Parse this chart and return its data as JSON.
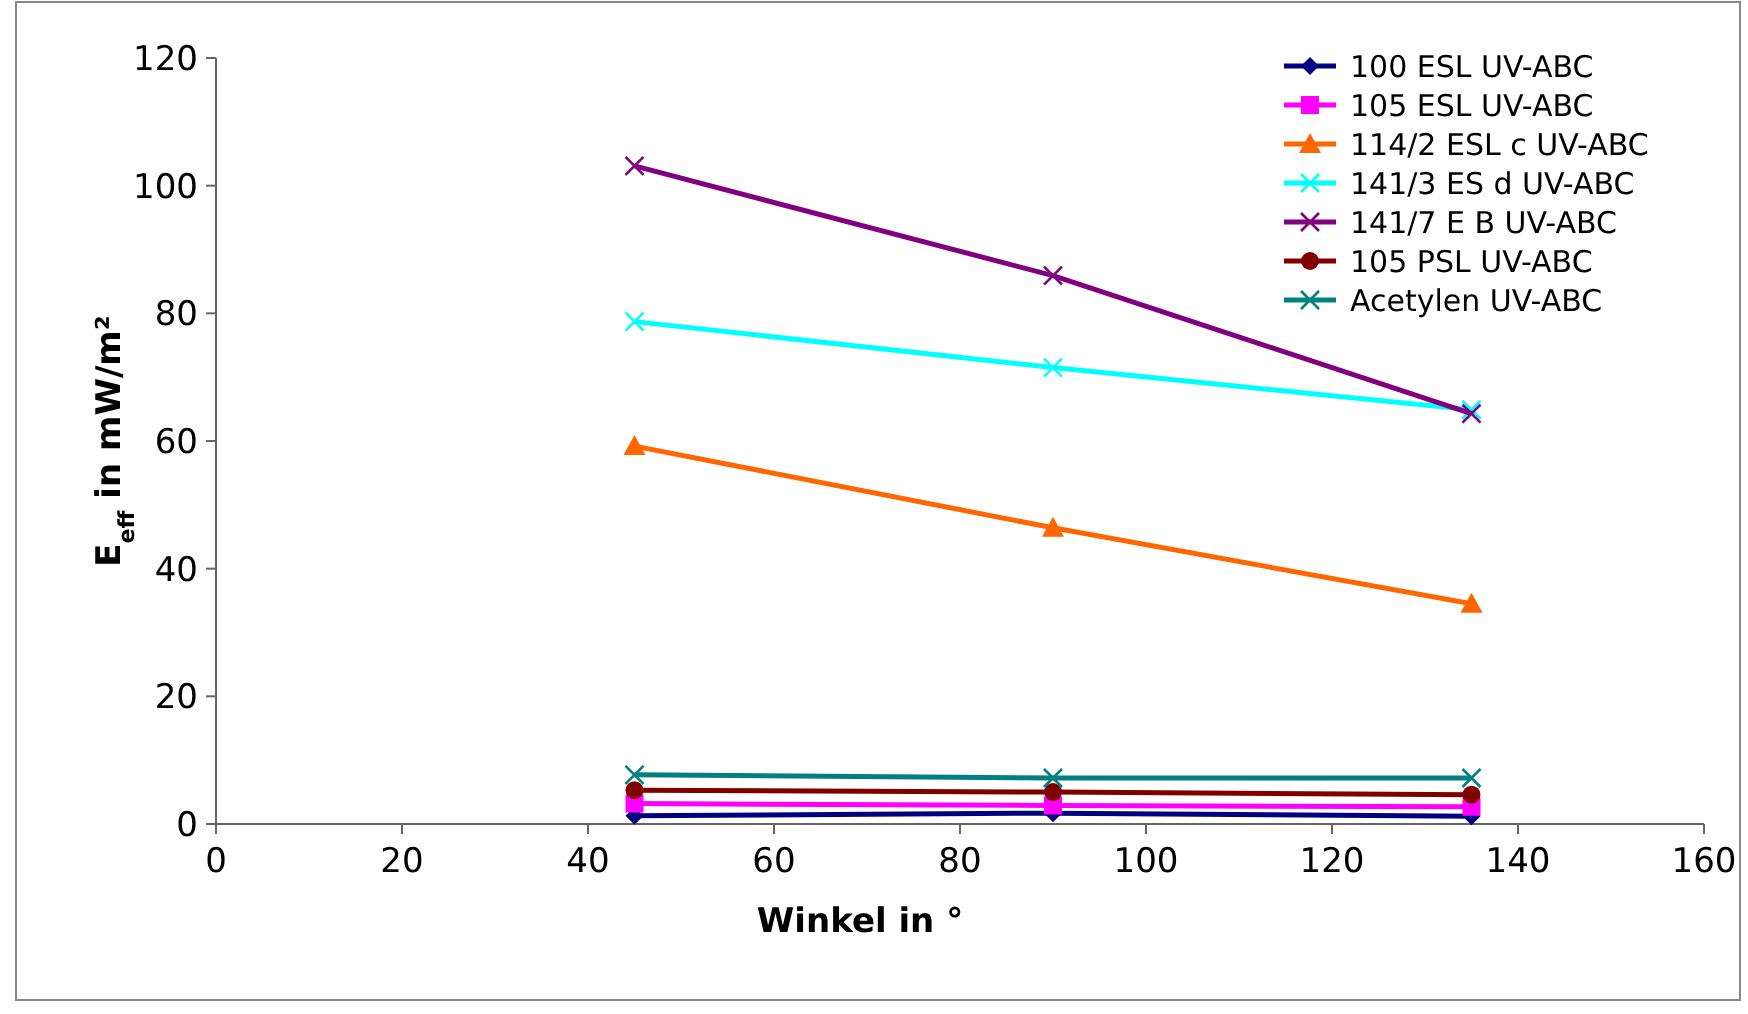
{
  "chart_data": {
    "type": "line",
    "xlabel": "Winkel in °",
    "ylabel": "E$_{eff}$ in mW/m²",
    "x": [
      45,
      90,
      135
    ],
    "xlim": [
      0,
      160
    ],
    "xticks": [
      0,
      20,
      40,
      60,
      80,
      100,
      120,
      140,
      160
    ],
    "ylim": [
      0,
      120
    ],
    "yticks": [
      0,
      20,
      40,
      60,
      80,
      100,
      120
    ],
    "grid": false,
    "legend": "top right",
    "line_style": "solid",
    "series": [
      {
        "name": "100 ESL UV-ABC",
        "color": "#000080",
        "marker": "diamond",
        "values": [
          1.3,
          1.7,
          1.2
        ]
      },
      {
        "name": "105 ESL UV-ABC",
        "color": "#ff00ff",
        "marker": "square",
        "values": [
          3.2,
          2.9,
          2.7
        ]
      },
      {
        "name": "114/2 ESL c UV-ABC",
        "color": "#ff6600",
        "marker": "triangle",
        "values": [
          59.2,
          46.4,
          34.5
        ]
      },
      {
        "name": "141/3 ES d UV-ABC",
        "color": "#00ffff",
        "marker": "cross",
        "values": [
          78.7,
          71.5,
          64.9
        ]
      },
      {
        "name": "141/7 E B UV-ABC",
        "color": "#800080",
        "marker": "cross",
        "values": [
          103.1,
          85.9,
          64.3
        ]
      },
      {
        "name": "105 PSL UV-ABC",
        "color": "#800000",
        "marker": "circle",
        "values": [
          5.3,
          5.0,
          4.6
        ]
      },
      {
        "name": "Acetylen UV-ABC",
        "color": "#008080",
        "marker": "cross",
        "values": [
          7.7,
          7.2,
          7.2
        ]
      }
    ]
  }
}
